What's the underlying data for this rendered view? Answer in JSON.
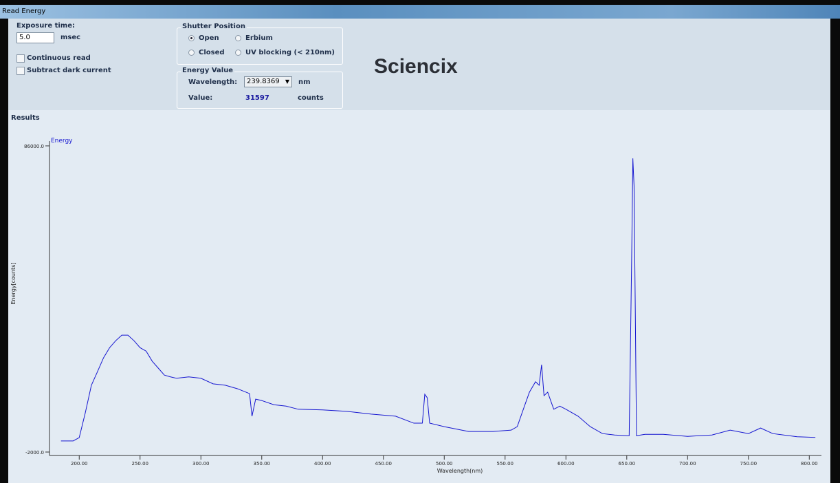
{
  "window_title": "Read Energy",
  "exposure": {
    "label": "Exposure time:",
    "value": "5.0",
    "unit": "msec"
  },
  "options": [
    {
      "label": "Continuous read",
      "checked": false
    },
    {
      "label": "Subtract dark current",
      "checked": false
    }
  ],
  "shutter": {
    "title": "Shutter Position",
    "choices": [
      {
        "label": "Open",
        "checked": true
      },
      {
        "label": "Erbium",
        "checked": false
      },
      {
        "label": "Closed",
        "checked": false
      },
      {
        "label": "UV blocking (< 210nm)",
        "checked": false
      }
    ]
  },
  "energy": {
    "title": "Energy Value",
    "wavelength_label": "Wavelength:",
    "wavelength": "239.8369",
    "wavelength_unit": "nm",
    "value_label": "Value:",
    "value": "31597",
    "value_unit": "counts"
  },
  "brand": "Sciencix",
  "results_label": "Results",
  "chart_data": {
    "type": "line",
    "xlabel": "Wavelength(nm)",
    "ylabel": "Energy[counts]",
    "xlim": [
      175,
      810
    ],
    "ylim": [
      -2000,
      86000
    ],
    "xticks": [
      {
        "value": 200,
        "label": "200.00"
      },
      {
        "value": 250,
        "label": "250.00"
      },
      {
        "value": 300,
        "label": "300.00"
      },
      {
        "value": 350,
        "label": "350.00"
      },
      {
        "value": 400,
        "label": "400.00"
      },
      {
        "value": 450,
        "label": "450.00"
      },
      {
        "value": 500,
        "label": "500.00"
      },
      {
        "value": 550,
        "label": "550.00"
      },
      {
        "value": 600,
        "label": "600.00"
      },
      {
        "value": 650,
        "label": "650.00"
      },
      {
        "value": 700,
        "label": "700.00"
      },
      {
        "value": 750,
        "label": "750.00"
      },
      {
        "value": 800,
        "label": "800.00"
      }
    ],
    "yticks": [
      {
        "value": -2000,
        "label": "-2000.0"
      },
      {
        "value": 86000,
        "label": "86000.0"
      }
    ],
    "x": [
      185,
      195,
      200,
      205,
      210,
      215,
      220,
      225,
      230,
      235,
      240,
      245,
      250,
      255,
      260,
      265,
      270,
      275,
      280,
      290,
      300,
      310,
      320,
      330,
      340,
      342,
      345,
      350,
      360,
      370,
      380,
      400,
      420,
      440,
      460,
      475,
      482,
      484,
      486,
      488,
      500,
      520,
      540,
      555,
      560,
      565,
      570,
      575,
      578,
      580,
      582,
      585,
      590,
      595,
      600,
      610,
      620,
      630,
      640,
      650,
      652,
      654,
      655,
      656,
      657,
      658,
      665,
      680,
      700,
      720,
      735,
      750,
      760,
      770,
      790,
      805
    ],
    "series": [
      {
        "name": "Energy",
        "color": "#1515d0",
        "values": [
          1200,
          1200,
          2150,
          9300,
          17200,
          21100,
          25100,
          28000,
          30000,
          31600,
          31600,
          30000,
          28000,
          27000,
          24100,
          22100,
          20100,
          19600,
          19200,
          19600,
          19200,
          17600,
          17200,
          16200,
          14800,
          8300,
          13200,
          12800,
          11600,
          11200,
          10300,
          10100,
          9700,
          8900,
          8300,
          6300,
          6300,
          14600,
          13600,
          6300,
          5300,
          3900,
          3900,
          4300,
          5300,
          10300,
          15200,
          18200,
          17200,
          23100,
          14200,
          15200,
          10300,
          11200,
          10300,
          8300,
          5300,
          3300,
          2900,
          2700,
          2700,
          52800,
          82400,
          74500,
          38900,
          2700,
          3100,
          3100,
          2500,
          2900,
          4300,
          3300,
          4900,
          3300,
          2400,
          2200
        ]
      }
    ]
  }
}
